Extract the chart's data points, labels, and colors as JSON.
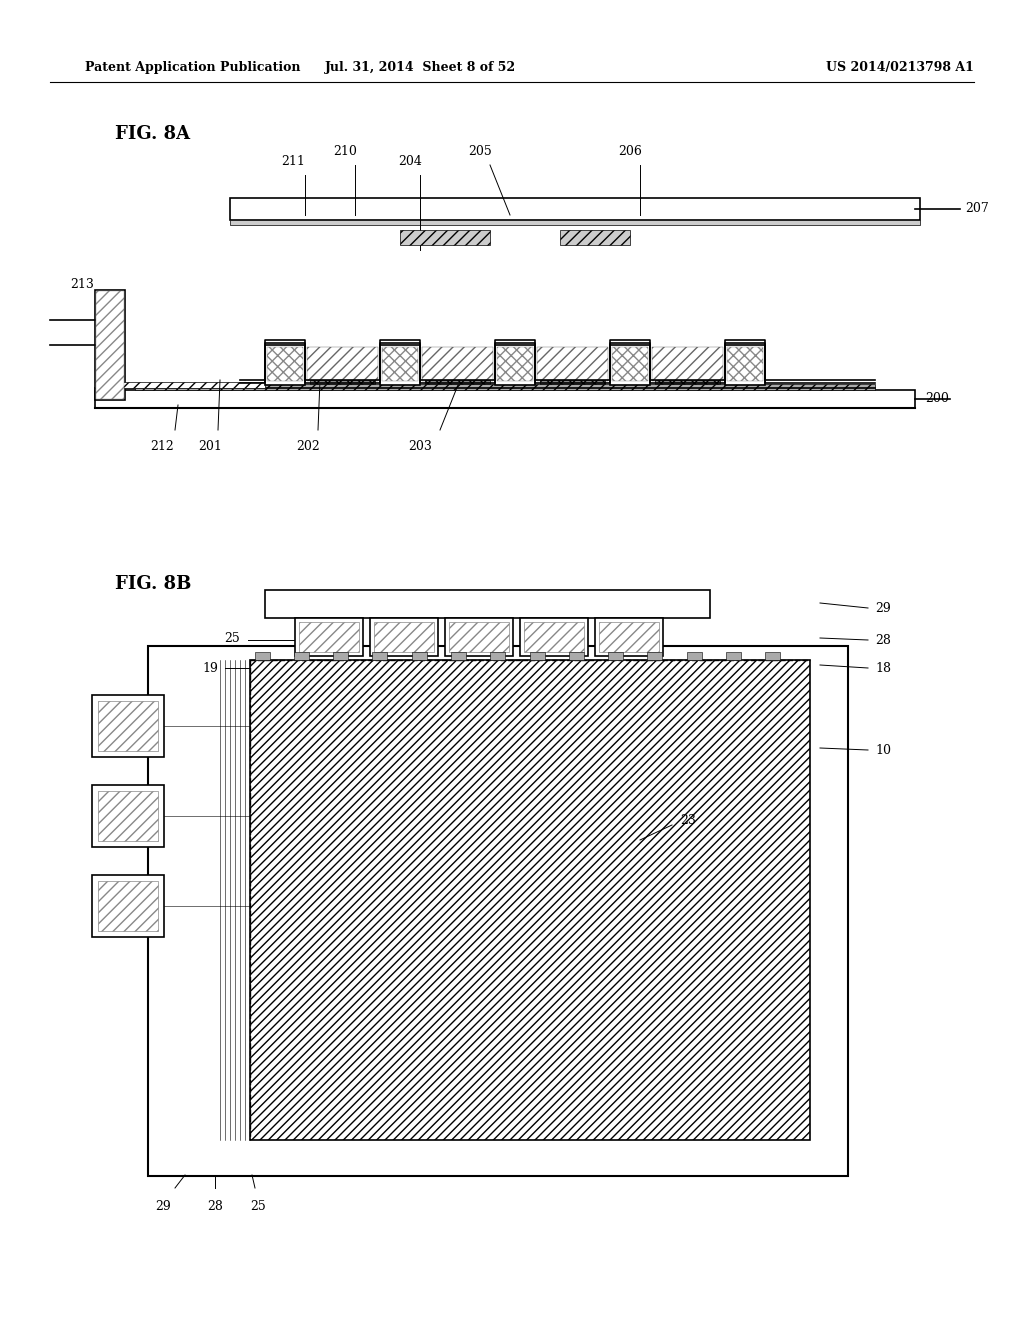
{
  "bg_color": "#ffffff",
  "header_left": "Patent Application Publication",
  "header_mid": "Jul. 31, 2014  Sheet 8 of 52",
  "header_right": "US 2014/0213798 A1",
  "fig8a_label": "FIG. 8A",
  "fig8b_label": "FIG. 8B",
  "line_color": "#000000",
  "hatch_color": "#555555",
  "fig_width": 10.24,
  "fig_height": 13.2
}
